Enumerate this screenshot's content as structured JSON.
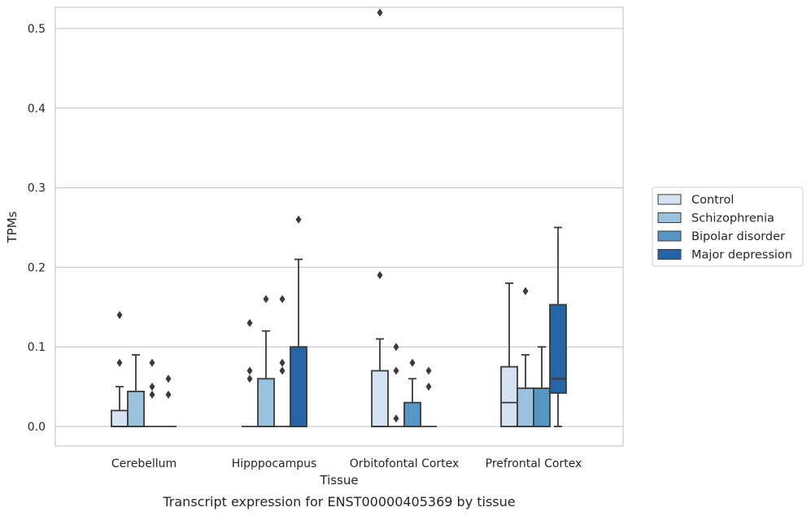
{
  "chart_data": {
    "type": "box",
    "caption": "Transcript expression for ENST00000405369 by tissue",
    "xlabel": "Tissue",
    "ylabel": "TPMs",
    "ylim": [
      -0.025,
      0.545
    ],
    "yticks": [
      0.0,
      0.1,
      0.2,
      0.3,
      0.4,
      0.5
    ],
    "ytick_labels": [
      "0.0",
      "0.1",
      "0.2",
      "0.3",
      "0.4",
      "0.5"
    ],
    "grid": "horizontal",
    "legend_position": "right",
    "categories": [
      "Cerebellum",
      "Hipppocampus",
      "Orbitofontal Cortex",
      "Prefrontal Cortex"
    ],
    "series": [
      {
        "name": "Control",
        "color": "#d4e2f2",
        "boxes": [
          {
            "whislo": 0.0,
            "q1": 0.0,
            "med": 0.0,
            "q3": 0.02,
            "whishi": 0.05,
            "fliers": [
              0.08,
              0.14
            ]
          },
          {
            "whislo": 0.0,
            "q1": 0.0,
            "med": 0.0,
            "q3": 0.0,
            "whishi": 0.0,
            "fliers": [
              0.06,
              0.07,
              0.13
            ]
          },
          {
            "whislo": 0.0,
            "q1": 0.0,
            "med": 0.0,
            "q3": 0.07,
            "whishi": 0.11,
            "fliers": [
              0.19,
              0.52
            ]
          },
          {
            "whislo": 0.0,
            "q1": 0.0,
            "med": 0.03,
            "q3": 0.075,
            "whishi": 0.18,
            "fliers": []
          }
        ]
      },
      {
        "name": "Schizophrenia",
        "color": "#9ac2dd",
        "boxes": [
          {
            "whislo": 0.0,
            "q1": 0.0,
            "med": 0.0,
            "q3": 0.044,
            "whishi": 0.09,
            "fliers": []
          },
          {
            "whislo": 0.0,
            "q1": 0.0,
            "med": 0.0,
            "q3": 0.06,
            "whishi": 0.12,
            "fliers": [
              0.16
            ]
          },
          {
            "whislo": 0.0,
            "q1": 0.0,
            "med": 0.0,
            "q3": 0.0,
            "whishi": 0.0,
            "fliers": [
              0.01,
              0.07,
              0.1
            ]
          },
          {
            "whislo": 0.0,
            "q1": 0.0,
            "med": 0.0,
            "q3": 0.048,
            "whishi": 0.09,
            "fliers": [
              0.17
            ]
          }
        ]
      },
      {
        "name": "Bipolar disorder",
        "color": "#5596c5",
        "boxes": [
          {
            "whislo": 0.0,
            "q1": 0.0,
            "med": 0.0,
            "q3": 0.0,
            "whishi": 0.0,
            "fliers": [
              0.04,
              0.05,
              0.08
            ]
          },
          {
            "whislo": 0.0,
            "q1": 0.0,
            "med": 0.0,
            "q3": 0.0,
            "whishi": 0.0,
            "fliers": [
              0.07,
              0.08,
              0.16
            ]
          },
          {
            "whislo": 0.0,
            "q1": 0.0,
            "med": 0.0,
            "q3": 0.03,
            "whishi": 0.06,
            "fliers": [
              0.08
            ]
          },
          {
            "whislo": 0.0,
            "q1": 0.0,
            "med": 0.0,
            "q3": 0.048,
            "whishi": 0.1,
            "fliers": []
          }
        ]
      },
      {
        "name": "Major depression",
        "color": "#2565a5",
        "boxes": [
          {
            "whislo": 0.0,
            "q1": 0.0,
            "med": 0.0,
            "q3": 0.0,
            "whishi": 0.0,
            "fliers": [
              0.04,
              0.06
            ]
          },
          {
            "whislo": 0.0,
            "q1": 0.0,
            "med": 0.0,
            "q3": 0.1,
            "whishi": 0.21,
            "fliers": [
              0.26
            ]
          },
          {
            "whislo": 0.0,
            "q1": 0.0,
            "med": 0.0,
            "q3": 0.0,
            "whishi": 0.0,
            "fliers": [
              0.05,
              0.07
            ]
          },
          {
            "whislo": 0.0,
            "q1": 0.042,
            "med": 0.06,
            "q3": 0.153,
            "whishi": 0.25,
            "fliers": []
          }
        ]
      }
    ]
  },
  "colors": {
    "frame": "#cccccc",
    "grid": "#cccccc",
    "line": "#3a3a3a"
  }
}
